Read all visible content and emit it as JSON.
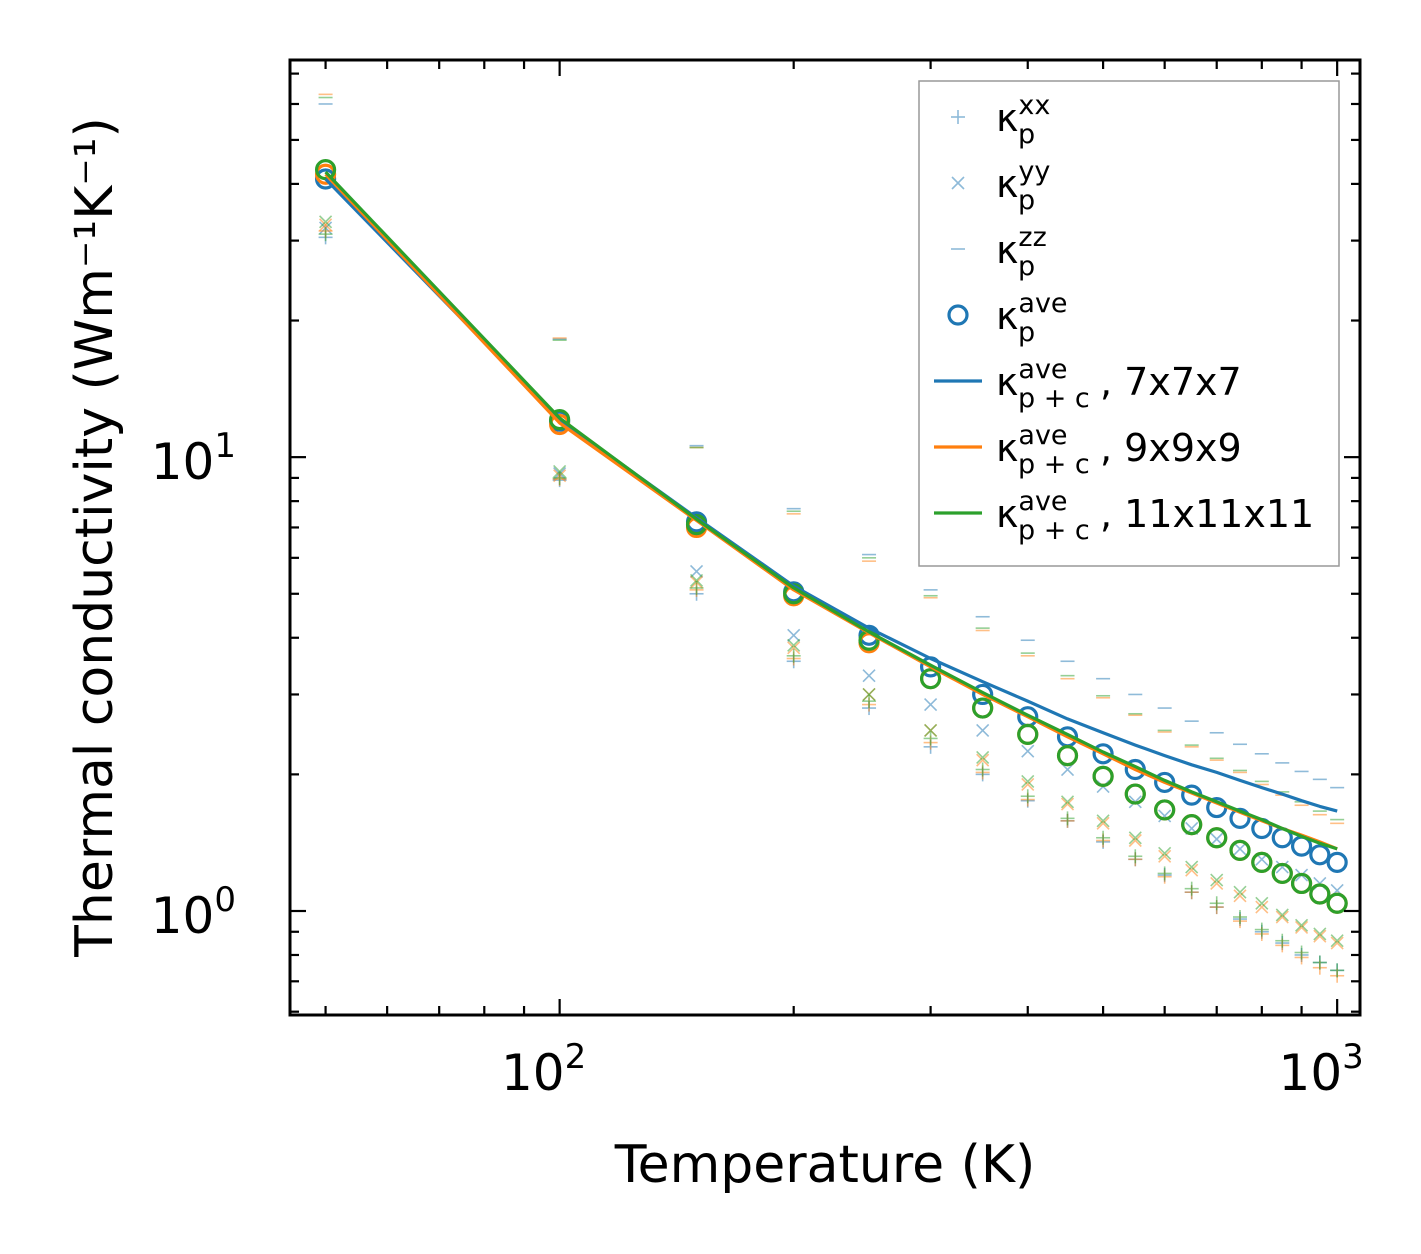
{
  "chart_data": {
    "type": "scatter",
    "xscale": "log",
    "yscale": "log",
    "xlim": [
      45,
      1070
    ],
    "ylim": [
      0.59,
      75
    ],
    "xlabel": "Temperature (K)",
    "ylabel": "Thermal conductivity (Wm⁻¹K⁻¹)",
    "x_ticks": [
      {
        "base": "10",
        "exp": "2"
      },
      {
        "base": "10",
        "exp": "3"
      }
    ],
    "y_ticks": [
      {
        "base": "10",
        "exp": "0"
      },
      {
        "base": "10",
        "exp": "1"
      }
    ],
    "x": [
      50,
      100,
      150,
      200,
      250,
      300,
      350,
      400,
      450,
      500,
      550,
      600,
      650,
      700,
      750,
      800,
      850,
      900,
      950,
      1000
    ],
    "colors": {
      "blue": "#1f77b4",
      "orange": "#ff7f0e",
      "green": "#2ca02c"
    },
    "grids": [
      {
        "name": "7x7x7",
        "color": "#1f77b4",
        "kxx": [
          30.5,
          8.9,
          5.0,
          3.55,
          2.8,
          2.3,
          2.0,
          1.75,
          1.58,
          1.42,
          1.3,
          1.2,
          1.1,
          1.02,
          0.96,
          0.9,
          0.85,
          0.8,
          0.77,
          0.74
        ],
        "kyy": [
          32,
          9.2,
          5.6,
          4.05,
          3.3,
          2.85,
          2.5,
          2.25,
          2.05,
          1.88,
          1.74,
          1.62,
          1.52,
          1.44,
          1.37,
          1.3,
          1.25,
          1.2,
          1.15,
          1.11
        ],
        "kzz": [
          60,
          18.2,
          10.6,
          7.7,
          6.1,
          5.1,
          4.45,
          3.95,
          3.55,
          3.25,
          3.0,
          2.8,
          2.62,
          2.47,
          2.33,
          2.22,
          2.12,
          2.03,
          1.95,
          1.87
        ],
        "kave": [
          41,
          12.0,
          7.2,
          5.05,
          4.05,
          3.45,
          3.0,
          2.68,
          2.42,
          2.22,
          2.05,
          1.92,
          1.8,
          1.69,
          1.6,
          1.52,
          1.45,
          1.39,
          1.33,
          1.28
        ],
        "kpc": [
          41,
          12.1,
          7.35,
          5.2,
          4.2,
          3.6,
          3.2,
          2.9,
          2.65,
          2.47,
          2.32,
          2.2,
          2.1,
          2.02,
          1.94,
          1.87,
          1.81,
          1.75,
          1.7,
          1.66
        ]
      },
      {
        "name": "9x9x9",
        "color": "#ff7f0e",
        "kxx": [
          31.5,
          8.95,
          5.1,
          3.6,
          2.85,
          2.35,
          2.02,
          1.76,
          1.58,
          1.43,
          1.3,
          1.19,
          1.1,
          1.02,
          0.95,
          0.89,
          0.84,
          0.79,
          0.75,
          0.72
        ],
        "kyy": [
          32.5,
          9.1,
          5.3,
          3.8,
          3.0,
          2.5,
          2.15,
          1.9,
          1.72,
          1.56,
          1.43,
          1.32,
          1.23,
          1.15,
          1.08,
          1.02,
          0.97,
          0.92,
          0.88,
          0.85
        ],
        "kzz": [
          63,
          18.3,
          10.5,
          7.5,
          5.9,
          4.9,
          4.15,
          3.65,
          3.25,
          2.95,
          2.7,
          2.48,
          2.3,
          2.15,
          2.02,
          1.9,
          1.8,
          1.71,
          1.63,
          1.56
        ],
        "kave": [
          42,
          11.8,
          7.0,
          4.95,
          3.9,
          3.25,
          2.8,
          2.45,
          2.2,
          1.98,
          1.81,
          1.67,
          1.55,
          1.45,
          1.36,
          1.28,
          1.21,
          1.15,
          1.09,
          1.04
        ],
        "kpc": [
          42,
          11.9,
          7.25,
          5.1,
          4.1,
          3.45,
          3.0,
          2.68,
          2.42,
          2.22,
          2.05,
          1.92,
          1.82,
          1.73,
          1.65,
          1.58,
          1.52,
          1.47,
          1.42,
          1.37
        ]
      },
      {
        "name": "11x11x11",
        "color": "#2ca02c",
        "kxx": [
          31,
          9.0,
          5.15,
          3.65,
          2.9,
          2.4,
          2.05,
          1.79,
          1.6,
          1.45,
          1.32,
          1.21,
          1.12,
          1.04,
          0.97,
          0.91,
          0.86,
          0.81,
          0.77,
          0.74
        ],
        "kyy": [
          33,
          9.3,
          5.35,
          3.85,
          3.0,
          2.5,
          2.18,
          1.93,
          1.74,
          1.58,
          1.45,
          1.34,
          1.25,
          1.17,
          1.1,
          1.04,
          0.98,
          0.93,
          0.89,
          0.86
        ],
        "kzz": [
          62,
          18.1,
          10.5,
          7.6,
          6.0,
          4.95,
          4.2,
          3.7,
          3.3,
          2.98,
          2.72,
          2.5,
          2.32,
          2.17,
          2.04,
          1.93,
          1.83,
          1.74,
          1.66,
          1.59
        ],
        "kave": [
          43,
          12.1,
          7.1,
          5.0,
          3.95,
          3.25,
          2.8,
          2.45,
          2.2,
          1.98,
          1.81,
          1.67,
          1.55,
          1.45,
          1.36,
          1.28,
          1.21,
          1.15,
          1.09,
          1.04
        ],
        "kpc": [
          42.5,
          12.2,
          7.3,
          5.15,
          4.12,
          3.48,
          3.03,
          2.7,
          2.45,
          2.24,
          2.08,
          1.94,
          1.83,
          1.74,
          1.66,
          1.59,
          1.52,
          1.46,
          1.41,
          1.37
        ]
      }
    ],
    "legend": {
      "location": "upper right",
      "entries": [
        {
          "marker": "plus",
          "color": "#1f77b4",
          "symbol": "κ",
          "sub": "p",
          "sup": "xx",
          "suffix": ""
        },
        {
          "marker": "cross",
          "color": "#1f77b4",
          "symbol": "κ",
          "sub": "p",
          "sup": "yy",
          "suffix": ""
        },
        {
          "marker": "dash",
          "color": "#1f77b4",
          "symbol": "κ",
          "sub": "p",
          "sup": "zz",
          "suffix": ""
        },
        {
          "marker": "circle",
          "color": "#1f77b4",
          "symbol": "κ",
          "sub": "p",
          "sup": "ave",
          "suffix": ""
        },
        {
          "marker": "line",
          "color": "#1f77b4",
          "symbol": "κ",
          "sub": "p + c",
          "sup": "ave",
          "suffix": ", 7x7x7"
        },
        {
          "marker": "line",
          "color": "#ff7f0e",
          "symbol": "κ",
          "sub": "p + c",
          "sup": "ave",
          "suffix": ", 9x9x9"
        },
        {
          "marker": "line",
          "color": "#2ca02c",
          "symbol": "κ",
          "sub": "p + c",
          "sup": "ave",
          "suffix": ", 11x11x11"
        }
      ]
    }
  }
}
